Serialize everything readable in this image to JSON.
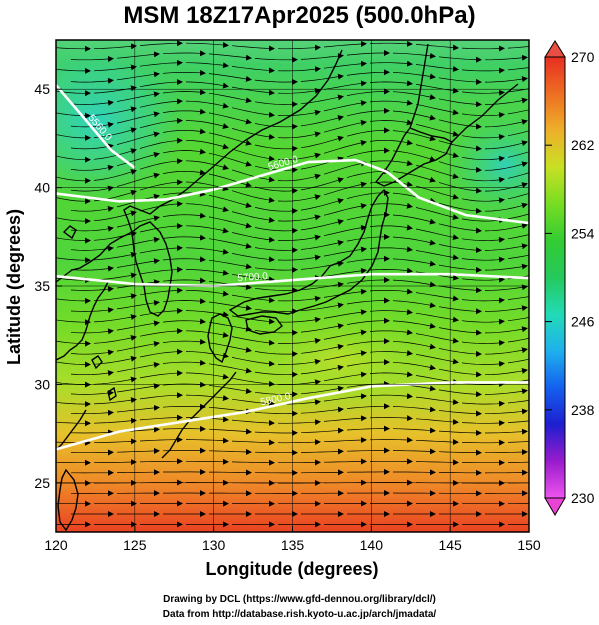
{
  "title": "MSM 18Z17Apr2025 (500.0hPa)",
  "map": {
    "xlabel": "Longitude (degrees)",
    "ylabel": "Latitude  (degrees)",
    "lon_range": [
      120,
      150
    ],
    "lat_range": [
      22.5,
      47.5
    ],
    "lon_ticks": [
      "120",
      "125",
      "130",
      "135",
      "140",
      "145",
      "150"
    ],
    "lat_ticks": [
      "25",
      "30",
      "35",
      "40",
      "45"
    ],
    "contour_labels": [
      "5560.0",
      "5600.0",
      "5700.0",
      "5800.0"
    ],
    "contours": [
      {
        "label": "5560.0",
        "points": [
          [
            120,
            45.2
          ],
          [
            121.5,
            43.8
          ],
          [
            123.5,
            41.9
          ],
          [
            125,
            41.0
          ]
        ]
      },
      {
        "label": "5600.0",
        "points": [
          [
            120,
            39.7
          ],
          [
            124,
            39.3
          ],
          [
            127,
            39.4
          ],
          [
            130,
            39.9
          ],
          [
            133,
            40.6
          ],
          [
            136,
            41.3
          ],
          [
            139,
            41.4
          ],
          [
            141,
            40.8
          ],
          [
            143,
            39.5
          ],
          [
            146,
            38.6
          ],
          [
            150,
            38.2
          ]
        ]
      },
      {
        "label": "5700.0",
        "points": [
          [
            120,
            35.5
          ],
          [
            125,
            35.1
          ],
          [
            130,
            35.0
          ],
          [
            135,
            35.3
          ],
          [
            140,
            35.6
          ],
          [
            145,
            35.6
          ],
          [
            150,
            35.4
          ]
        ]
      },
      {
        "label": "5800.0",
        "points": [
          [
            120,
            26.7
          ],
          [
            124,
            27.6
          ],
          [
            128,
            28.1
          ],
          [
            132,
            28.6
          ],
          [
            136,
            29.3
          ],
          [
            140,
            29.9
          ],
          [
            145,
            30.1
          ],
          [
            150,
            30.1
          ]
        ]
      }
    ],
    "colorbar": {
      "ticks": [
        "270",
        "262",
        "254",
        "246",
        "238",
        "230"
      ],
      "range": [
        230,
        270
      ],
      "stops": [
        "#ee55ee",
        "#9a1bcc",
        "#1d1fd0",
        "#1460ee",
        "#1fb0ee",
        "#22dbb6",
        "#25c95c",
        "#33cc33",
        "#77dd22",
        "#c8e024",
        "#eeb02a",
        "#ee6e22",
        "#e82e22"
      ]
    }
  },
  "footer": {
    "credit_line1": "Drawing by DCL (https://www.gfd-dennou.org/library/dcl/)",
    "credit_line2": "Data from http://database.rish.kyoto-u.ac.jp/arch/jmadata/"
  }
}
